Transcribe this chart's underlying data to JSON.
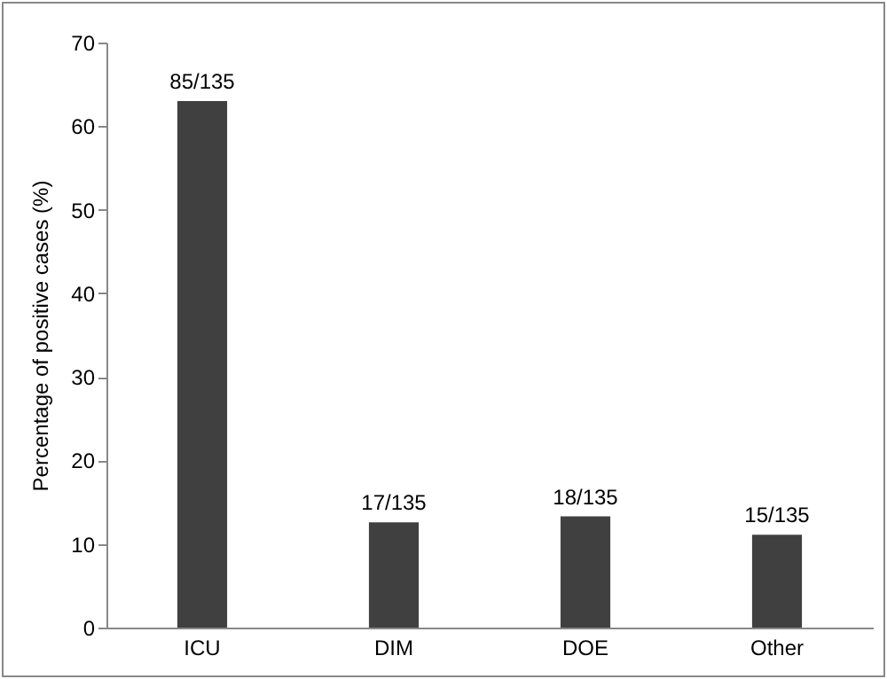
{
  "chart_data": {
    "type": "bar",
    "ylabel": "Percentage of positive cases (%)",
    "categories": [
      "ICU",
      "DIM",
      "DOE",
      "Other"
    ],
    "values": [
      63,
      12.6,
      13.3,
      11.1
    ],
    "value_labels": [
      "85/135",
      "17/135",
      "18/135",
      "15/135"
    ],
    "color": "#404040",
    "ylim": [
      0,
      70
    ],
    "yticks": [
      0,
      10,
      20,
      30,
      40,
      50,
      60,
      70
    ],
    "grid": false
  }
}
